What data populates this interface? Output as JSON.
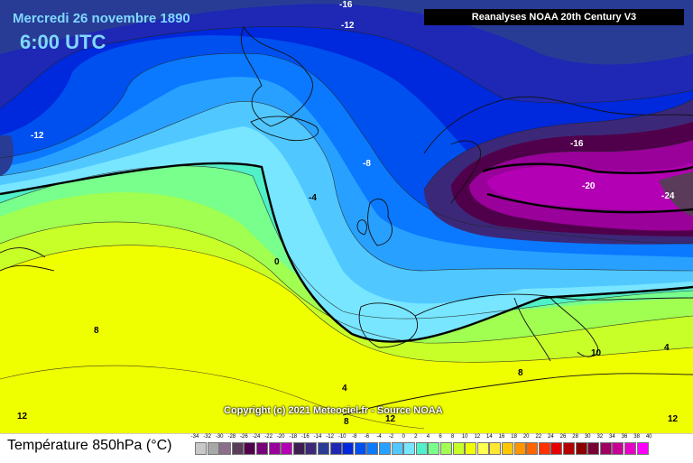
{
  "header": {
    "date": "Mercredi 26 novembre 1890",
    "time": "6:00 UTC"
  },
  "source_label": "Reanalyses NOAA 20th Century V3",
  "copyright": "Copyright (c) 2021 Meteociel.fr - Source NOAA",
  "legend": {
    "title": "Température 850hPa (°C)",
    "ticks": [
      "-34",
      "-32",
      "-30",
      "-28",
      "-26",
      "-24",
      "-22",
      "-20",
      "-18",
      "-16",
      "-14",
      "-12",
      "-10",
      "-8",
      "-6",
      "-4",
      "-2",
      "0",
      "2",
      "4",
      "6",
      "8",
      "10",
      "12",
      "14",
      "16",
      "18",
      "20",
      "22",
      "24",
      "26",
      "28",
      "30",
      "32",
      "34",
      "36",
      "38",
      "40"
    ],
    "colors": [
      "#c8c8c8",
      "#a8a8a8",
      "#8c6e8c",
      "#5a3c5a",
      "#50004b",
      "#780078",
      "#9a009a",
      "#b400b4",
      "#3c1e50",
      "#3c2878",
      "#283c96",
      "#1e28b4",
      "#0028dc",
      "#0050f0",
      "#0a78ff",
      "#28a0ff",
      "#50c8ff",
      "#78e6ff",
      "#50f0c8",
      "#78ff8c",
      "#a0ff50",
      "#c8ff28",
      "#f0ff00",
      "#ffff50",
      "#ffe632",
      "#ffc800",
      "#ff9600",
      "#ff6400",
      "#ff3200",
      "#e60000",
      "#b40000",
      "#8c0000",
      "#780032",
      "#a00064",
      "#c80096",
      "#e600c8",
      "#ff00ff"
    ]
  },
  "contour_labels": [
    {
      "text": "-16",
      "color": "#ffffff"
    },
    {
      "text": "-12",
      "color": "#ffffff"
    },
    {
      "text": "-12",
      "color": "#ffffff"
    },
    {
      "text": "-8",
      "color": "#ffffff"
    },
    {
      "text": "-4",
      "color": "#000000"
    },
    {
      "text": "0",
      "color": "#000000"
    },
    {
      "text": "-16",
      "color": "#ffffff"
    },
    {
      "text": "-20",
      "color": "#ffffff"
    },
    {
      "text": "-24",
      "color": "#ffffff"
    },
    {
      "text": "4",
      "color": "#000000"
    },
    {
      "text": "4",
      "color": "#000000"
    },
    {
      "text": "8",
      "color": "#000000"
    },
    {
      "text": "8",
      "color": "#000000"
    },
    {
      "text": "8",
      "color": "#000000"
    },
    {
      "text": "12",
      "color": "#000000"
    },
    {
      "text": "12",
      "color": "#000000"
    },
    {
      "text": "12",
      "color": "#000000"
    },
    {
      "text": "10",
      "color": "#000000"
    }
  ]
}
